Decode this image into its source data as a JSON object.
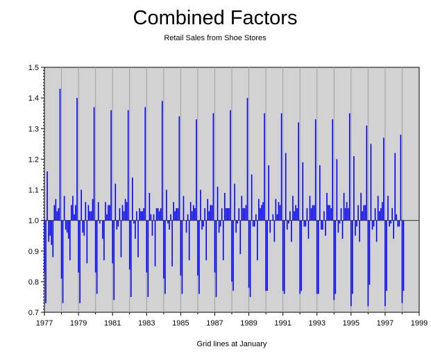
{
  "chart_data": {
    "type": "bar",
    "title": "Combined Factors",
    "subtitle": "Retail Sales from Shoe Stores",
    "xlabel": "Grid lines at January",
    "ylabel": "",
    "baseline": 1.0,
    "ylim": [
      0.7,
      1.5
    ],
    "xlim": [
      1977,
      1999
    ],
    "y_ticks": [
      "0.7",
      "0.8",
      "0.9",
      "1.0",
      "1.1",
      "1.2",
      "1.3",
      "1.4",
      "1.5"
    ],
    "x_ticks": [
      "1977",
      "1979",
      "1981",
      "1983",
      "1985",
      "1987",
      "1989",
      "1991",
      "1993",
      "1995",
      "1997",
      "1999"
    ],
    "grid": "vertical lines at January",
    "x_start": "1977-01",
    "frequency": "monthly",
    "series": [
      {
        "values": [
          0.83,
          0.73,
          1.16,
          0.93,
          0.95,
          0.92,
          0.88,
          1.05,
          1.07,
          1.03,
          1.04,
          1.43,
          0.81,
          0.73,
          1.08,
          0.97,
          0.96,
          0.94,
          0.87,
          1.05,
          1.08,
          1.02,
          1.05,
          1.4,
          0.83,
          0.73,
          1.1,
          0.96,
          0.95,
          1.06,
          0.86,
          1.05,
          1.03,
          1.03,
          1.07,
          1.37,
          0.83,
          0.76,
          1.06,
          0.99,
          1.0,
          0.94,
          0.87,
          1.06,
          1.02,
          1.05,
          1.05,
          1.36,
          0.86,
          0.74,
          1.12,
          0.97,
          0.98,
          1.04,
          0.88,
          1.05,
          1.03,
          1.07,
          1.06,
          1.36,
          0.84,
          0.75,
          1.14,
          0.99,
          0.94,
          1.03,
          0.88,
          1.04,
          1.03,
          1.03,
          1.04,
          1.37,
          0.83,
          0.75,
          1.09,
          1.02,
          0.95,
          1.02,
          0.85,
          1.04,
          1.04,
          1.03,
          1.04,
          1.39,
          0.81,
          0.76,
          1.1,
          0.99,
          0.97,
          1.02,
          0.85,
          1.06,
          1.03,
          1.04,
          1.04,
          1.34,
          0.82,
          0.76,
          1.08,
          1.0,
          0.96,
          1.02,
          0.87,
          1.06,
          1.03,
          1.05,
          1.04,
          1.33,
          0.82,
          0.76,
          1.1,
          0.97,
          0.98,
          1.04,
          0.87,
          1.07,
          1.03,
          1.05,
          1.05,
          1.35,
          0.83,
          0.75,
          1.11,
          0.96,
          0.98,
          1.04,
          0.87,
          1.09,
          1.04,
          1.04,
          1.04,
          1.36,
          0.8,
          0.77,
          1.12,
          0.96,
          0.99,
          1.04,
          0.89,
          1.08,
          1.04,
          1.04,
          1.05,
          1.4,
          0.78,
          0.75,
          1.15,
          0.98,
          0.98,
          1.02,
          0.87,
          1.07,
          1.04,
          1.05,
          1.06,
          1.35,
          0.77,
          0.77,
          1.18,
          0.96,
          1.0,
          1.02,
          0.93,
          1.07,
          1.02,
          1.06,
          1.05,
          1.35,
          0.77,
          0.76,
          1.22,
          0.97,
          0.99,
          1.03,
          0.93,
          1.08,
          1.03,
          1.05,
          1.04,
          1.32,
          0.76,
          0.77,
          1.19,
          0.98,
          0.98,
          1.04,
          0.94,
          1.08,
          1.04,
          1.05,
          1.05,
          1.33,
          0.76,
          0.76,
          1.18,
          0.97,
          0.97,
          1.03,
          0.95,
          1.09,
          1.05,
          1.05,
          1.04,
          1.33,
          0.74,
          0.76,
          1.2,
          0.96,
          0.99,
          1.04,
          0.94,
          1.09,
          1.04,
          1.06,
          1.04,
          1.35,
          0.72,
          0.76,
          1.21,
          0.95,
          0.98,
          1.05,
          0.93,
          1.09,
          1.03,
          1.05,
          1.05,
          1.31,
          0.72,
          0.79,
          1.25,
          0.97,
          0.98,
          1.04,
          0.93,
          1.08,
          1.03,
          1.04,
          1.06,
          1.27,
          0.72,
          0.77,
          1.08,
          0.98,
          0.99,
          1.04,
          0.94,
          1.22,
          1.02,
          0.98,
          0.98,
          1.28,
          0.73,
          0.77
        ]
      }
    ]
  }
}
